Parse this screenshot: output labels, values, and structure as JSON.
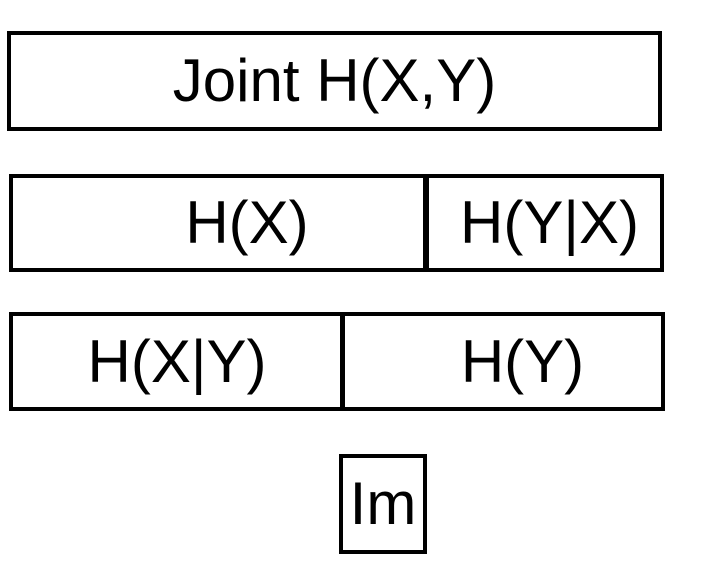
{
  "diagram": {
    "boxes": {
      "joint": "Joint H(X,Y)",
      "hx": "H(X)",
      "hyx": "H(Y|X)",
      "hxy": "H(X|Y)",
      "hy": "H(Y)",
      "im": "Im"
    }
  }
}
